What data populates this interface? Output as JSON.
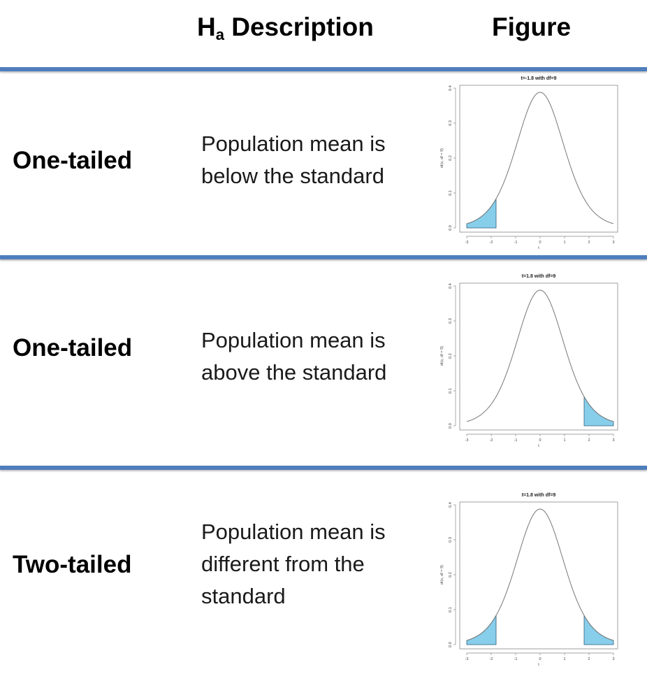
{
  "header": {
    "desc_main": "H",
    "desc_sub": "a",
    "desc_rest": " Description",
    "figure_label": "Figure"
  },
  "rows": [
    {
      "label": "One-tailed",
      "description": "Population mean is below the standard"
    },
    {
      "label": "One-tailed",
      "description": "Population mean is above the standard"
    },
    {
      "label": "Two-tailed",
      "description": "Population mean is different from the standard"
    }
  ],
  "chart_data": [
    {
      "type": "area",
      "title": "t=-1.8 with df=9",
      "xlabel": "t",
      "ylabel": "dt(x, df = 9)",
      "xlim": [
        -3,
        3
      ],
      "ylim": [
        0,
        0.4
      ],
      "xticks": [
        "-3",
        "-2",
        "-1",
        "0",
        "1",
        "2",
        "3"
      ],
      "yticks": [
        "0.0",
        "0.1",
        "0.2",
        "0.3",
        "0.4"
      ],
      "df": 9,
      "shaded_regions": [
        [
          -3,
          -1.8
        ]
      ],
      "shade_color": "#87ceeb"
    },
    {
      "type": "area",
      "title": "t=1.8 with df=9",
      "xlabel": "t",
      "ylabel": "dt(x, df = 9)",
      "xlim": [
        -3,
        3
      ],
      "ylim": [
        0,
        0.4
      ],
      "xticks": [
        "-3",
        "-2",
        "-1",
        "0",
        "1",
        "2",
        "3"
      ],
      "yticks": [
        "0.0",
        "0.1",
        "0.2",
        "0.3",
        "0.4"
      ],
      "df": 9,
      "shaded_regions": [
        [
          1.8,
          3
        ]
      ],
      "shade_color": "#87ceeb"
    },
    {
      "type": "area",
      "title": "t=1.8 with df=9",
      "xlabel": "t",
      "ylabel": "dt(x, df = 9)",
      "xlim": [
        -3,
        3
      ],
      "ylim": [
        0,
        0.4
      ],
      "xticks": [
        "-3",
        "-2",
        "-1",
        "0",
        "1",
        "2",
        "3"
      ],
      "yticks": [
        "0.0",
        "0.1",
        "0.2",
        "0.3",
        "0.4"
      ],
      "df": 9,
      "shaded_regions": [
        [
          -3,
          -1.8
        ],
        [
          1.8,
          3
        ]
      ],
      "shade_color": "#87ceeb"
    }
  ]
}
